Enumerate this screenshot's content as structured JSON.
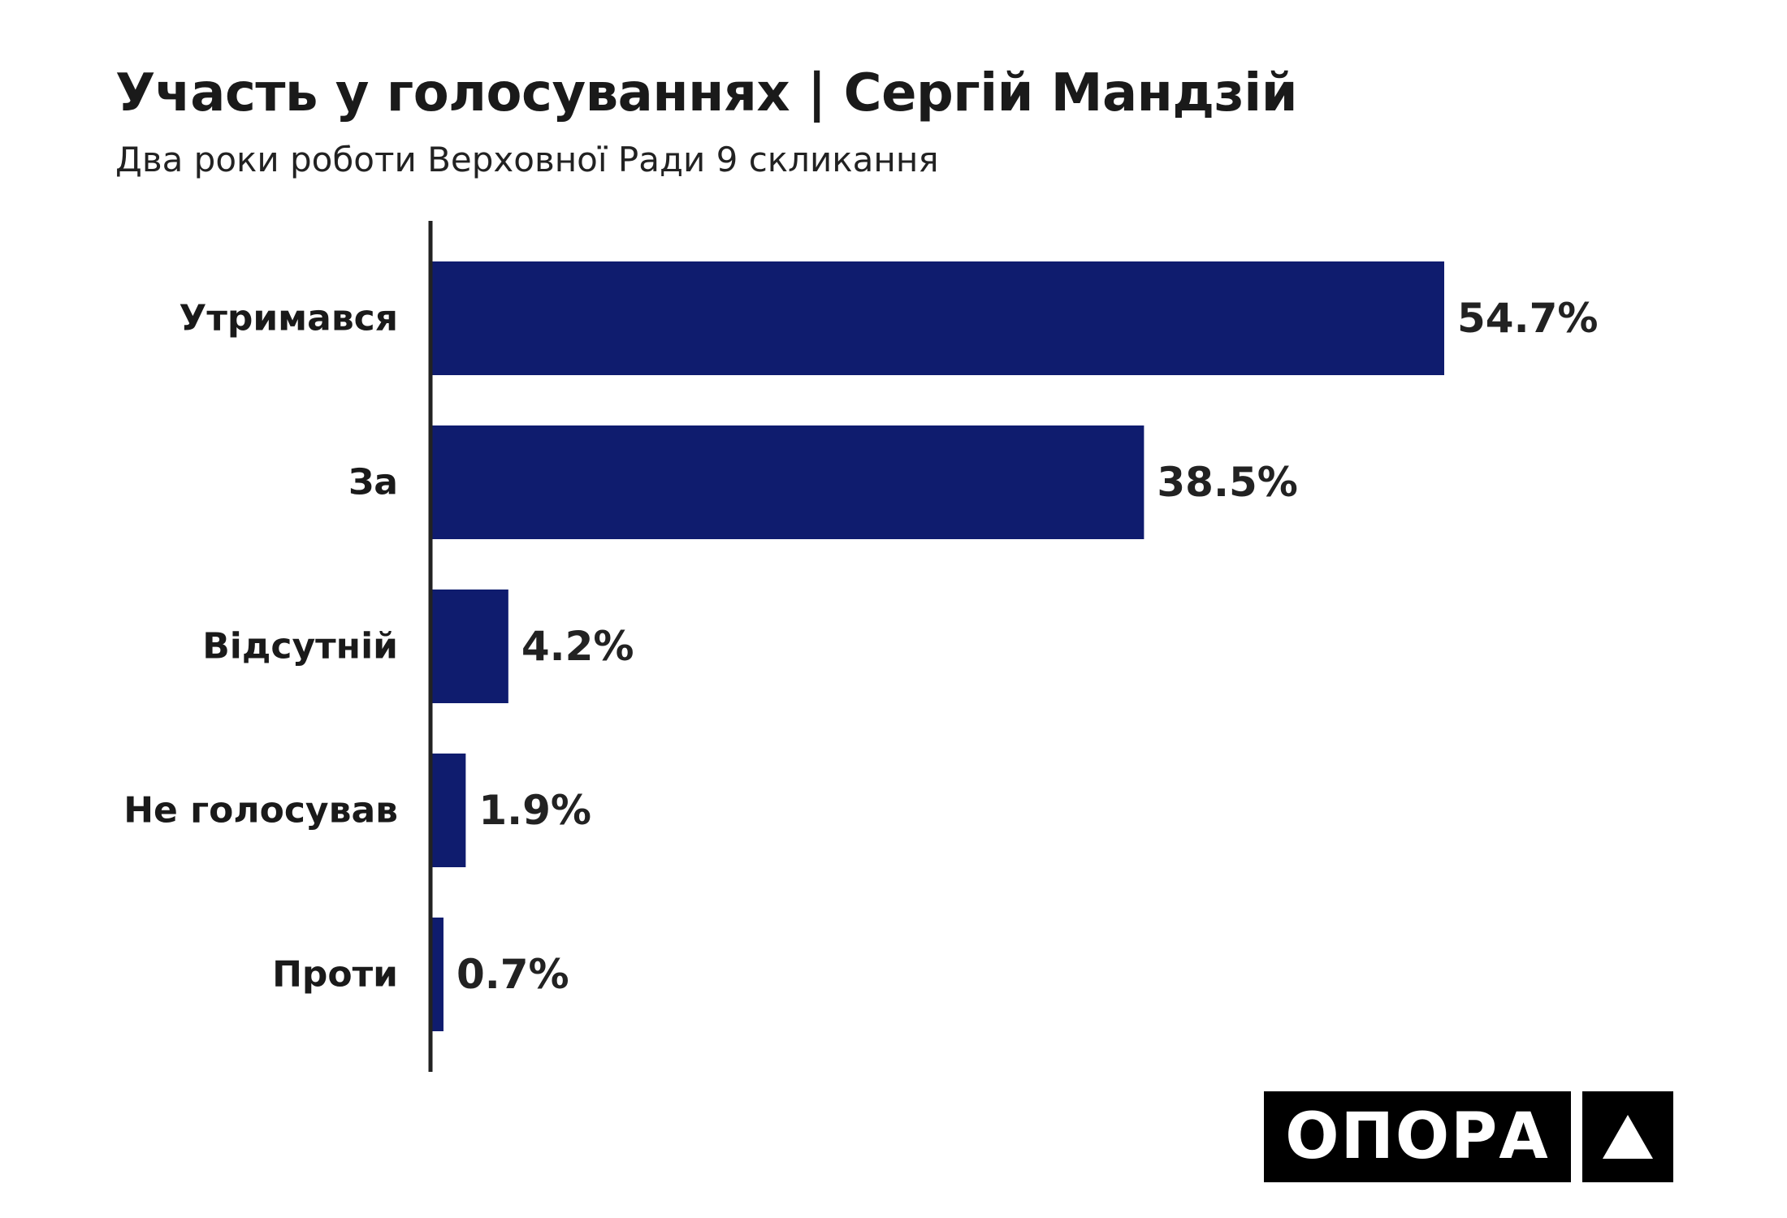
{
  "title": "Участь у голосуваннях | Сергій Мандзій",
  "subtitle": "Два роки роботи Верховної Ради 9 скликання",
  "logo": {
    "text": "ОПОРА",
    "icon": "triangle-icon"
  },
  "colors": {
    "bar": "#0f1c6e",
    "axis": "#222222",
    "text": "#1a1a1a"
  },
  "chart_data": {
    "type": "bar",
    "orientation": "horizontal",
    "title": "Участь у голосуваннях | Сергій Мандзій",
    "subtitle": "Два роки роботи Верховної Ради 9 скликання",
    "categories": [
      "Утримався",
      "За",
      "Відсутній",
      "Не голосував",
      "Проти"
    ],
    "values": [
      54.7,
      38.5,
      4.2,
      1.9,
      0.7
    ],
    "value_labels": [
      "54.7%",
      "38.5%",
      "4.2%",
      "1.9%",
      "0.7%"
    ],
    "unit": "%",
    "xlim": [
      0,
      54.7
    ],
    "grid": false,
    "legend": "none"
  }
}
